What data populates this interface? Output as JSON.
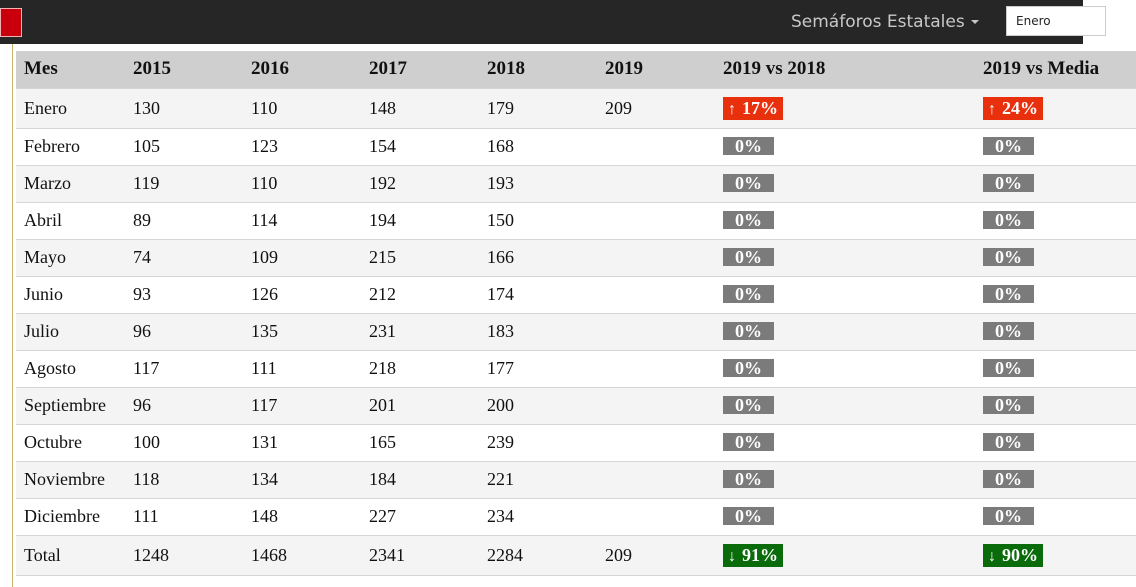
{
  "header": {
    "menu_label": "Semáforos Estatales",
    "month_value": "Enero"
  },
  "colors": {
    "up": "#e8300d",
    "down": "#0a6b0a",
    "neutral": "#7b7b7b"
  },
  "table": {
    "columns": [
      "Mes",
      "2015",
      "2016",
      "2017",
      "2018",
      "2019",
      "2019 vs 2018",
      "2019 vs Media"
    ],
    "rows": [
      {
        "mes": "Enero",
        "y2015": "130",
        "y2016": "110",
        "y2017": "148",
        "y2018": "179",
        "y2019": "209",
        "vs2018": {
          "dir": "up",
          "text": "17%"
        },
        "vsMedia": {
          "dir": "up",
          "text": "24%"
        }
      },
      {
        "mes": "Febrero",
        "y2015": "105",
        "y2016": "123",
        "y2017": "154",
        "y2018": "168",
        "y2019": "",
        "vs2018": {
          "dir": "neutral",
          "text": "0%"
        },
        "vsMedia": {
          "dir": "neutral",
          "text": "0%"
        }
      },
      {
        "mes": "Marzo",
        "y2015": "119",
        "y2016": "110",
        "y2017": "192",
        "y2018": "193",
        "y2019": "",
        "vs2018": {
          "dir": "neutral",
          "text": "0%"
        },
        "vsMedia": {
          "dir": "neutral",
          "text": "0%"
        }
      },
      {
        "mes": "Abril",
        "y2015": "89",
        "y2016": "114",
        "y2017": "194",
        "y2018": "150",
        "y2019": "",
        "vs2018": {
          "dir": "neutral",
          "text": "0%"
        },
        "vsMedia": {
          "dir": "neutral",
          "text": "0%"
        }
      },
      {
        "mes": "Mayo",
        "y2015": "74",
        "y2016": "109",
        "y2017": "215",
        "y2018": "166",
        "y2019": "",
        "vs2018": {
          "dir": "neutral",
          "text": "0%"
        },
        "vsMedia": {
          "dir": "neutral",
          "text": "0%"
        }
      },
      {
        "mes": "Junio",
        "y2015": "93",
        "y2016": "126",
        "y2017": "212",
        "y2018": "174",
        "y2019": "",
        "vs2018": {
          "dir": "neutral",
          "text": "0%"
        },
        "vsMedia": {
          "dir": "neutral",
          "text": "0%"
        }
      },
      {
        "mes": "Julio",
        "y2015": "96",
        "y2016": "135",
        "y2017": "231",
        "y2018": "183",
        "y2019": "",
        "vs2018": {
          "dir": "neutral",
          "text": "0%"
        },
        "vsMedia": {
          "dir": "neutral",
          "text": "0%"
        }
      },
      {
        "mes": "Agosto",
        "y2015": "117",
        "y2016": "111",
        "y2017": "218",
        "y2018": "177",
        "y2019": "",
        "vs2018": {
          "dir": "neutral",
          "text": "0%"
        },
        "vsMedia": {
          "dir": "neutral",
          "text": "0%"
        }
      },
      {
        "mes": "Septiembre",
        "y2015": "96",
        "y2016": "117",
        "y2017": "201",
        "y2018": "200",
        "y2019": "",
        "vs2018": {
          "dir": "neutral",
          "text": "0%"
        },
        "vsMedia": {
          "dir": "neutral",
          "text": "0%"
        }
      },
      {
        "mes": "Octubre",
        "y2015": "100",
        "y2016": "131",
        "y2017": "165",
        "y2018": "239",
        "y2019": "",
        "vs2018": {
          "dir": "neutral",
          "text": "0%"
        },
        "vsMedia": {
          "dir": "neutral",
          "text": "0%"
        }
      },
      {
        "mes": "Noviembre",
        "y2015": "118",
        "y2016": "134",
        "y2017": "184",
        "y2018": "221",
        "y2019": "",
        "vs2018": {
          "dir": "neutral",
          "text": "0%"
        },
        "vsMedia": {
          "dir": "neutral",
          "text": "0%"
        }
      },
      {
        "mes": "Diciembre",
        "y2015": "111",
        "y2016": "148",
        "y2017": "227",
        "y2018": "234",
        "y2019": "",
        "vs2018": {
          "dir": "neutral",
          "text": "0%"
        },
        "vsMedia": {
          "dir": "neutral",
          "text": "0%"
        }
      }
    ],
    "total": {
      "mes": "Total",
      "y2015": "1248",
      "y2016": "1468",
      "y2017": "2341",
      "y2018": "2284",
      "y2019": "209",
      "vs2018": {
        "dir": "down",
        "text": "91%"
      },
      "vsMedia": {
        "dir": "down",
        "text": "90%"
      }
    }
  }
}
